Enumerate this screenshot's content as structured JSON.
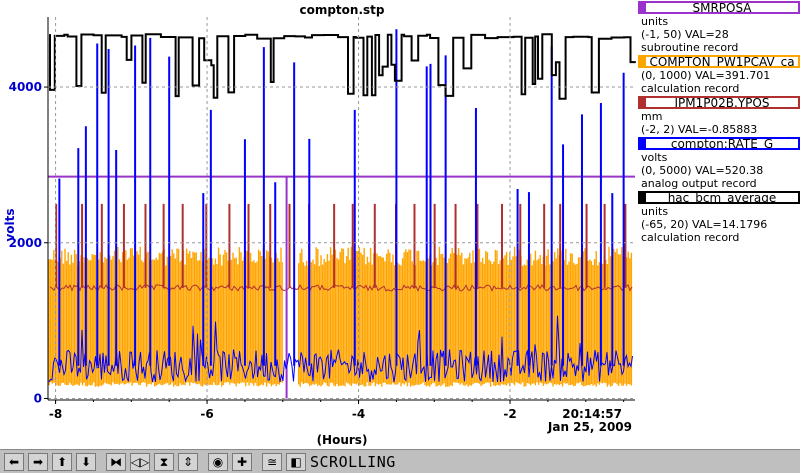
{
  "chart_data": {
    "type": "line",
    "title": "compton.stp",
    "ylabel": "volts",
    "xlabel": "(Hours)",
    "xlim": [
      -8.1,
      -0.35
    ],
    "ylim": [
      -20,
      4900
    ],
    "x_ticks": [
      -8,
      -6,
      -4,
      -2
    ],
    "x_tick_labels": [
      "-8",
      "-6",
      "-4",
      "-2"
    ],
    "y_ticks": [
      0,
      2000,
      4000
    ],
    "y_tick_labels": [
      "0",
      "2000",
      "4000"
    ],
    "grid": true,
    "timestamp": "20:14:57",
    "date": "Jan 25, 2009",
    "legend_position": "right",
    "series": [
      {
        "name": "SMRPOSA",
        "color": "#9933cc",
        "units": "units",
        "range": "(-1, 50)",
        "val": "VAL=28",
        "record": "subroutine record",
        "description": "flat line around 2850 on the volts axis",
        "level": 2850
      },
      {
        "name": "COMPTON_PW1PCAV_ca",
        "color": "#ffa500",
        "units": "(0, 1000) VAL=391.701",
        "range": "",
        "val": "",
        "record": "calculation record",
        "band_low": 150,
        "band_high": 1950
      },
      {
        "name": "IPM1P02B.YPOS",
        "color": "#b03030",
        "units": "mm",
        "range": "(-2, 2) VAL=-0.85883",
        "val": "",
        "record": "",
        "baseline": 1420,
        "spike_top": 2500
      },
      {
        "name": "compton:RATE_G",
        "color": "#0000ff",
        "units": "volts",
        "range": "(0, 5000) VAL=520.38",
        "val": "",
        "record": "analog output record",
        "baseline": 420,
        "spike_x": [
          -7.95,
          -7.7,
          -7.6,
          -7.45,
          -7.3,
          -7.2,
          -6.95,
          -6.75,
          -6.5,
          -6.05,
          -5.95,
          -5.5,
          -5.25,
          -5.1,
          -4.85,
          -4.65,
          -4.05,
          -3.5,
          -3.1,
          -3.05,
          -2.85,
          -2.45,
          -1.9,
          -1.75,
          -1.45,
          -1.3,
          -1.05,
          -0.8,
          -0.65,
          -0.5
        ]
      },
      {
        "name": "hac_bcm_average",
        "color": "#000000",
        "units": "units",
        "range": "(-65, 20) VAL=14.1796",
        "val": "",
        "record": "calculation record",
        "high": 4680,
        "low": 3850
      }
    ]
  },
  "legend": [
    {
      "label": "SMRPOSA",
      "lines": [
        "units",
        "(-1, 50) VAL=28",
        "subroutine record"
      ],
      "color": "#9933cc"
    },
    {
      "label": "COMPTON_PW1PCAV_ca",
      "lines": [
        "(0, 1000) VAL=391.701",
        "calculation record"
      ],
      "color": "#ffa500"
    },
    {
      "label": "IPM1P02B.YPOS",
      "lines": [
        "mm",
        "(-2, 2) VAL=-0.85883"
      ],
      "color": "#b03030"
    },
    {
      "label": "compton:RATE_G",
      "lines": [
        "volts",
        "(0, 5000) VAL=520.38",
        "analog output record"
      ],
      "color": "#0000ff"
    },
    {
      "label": "hac_bcm_average",
      "lines": [
        "units",
        "(-65, 20) VAL=14.1796",
        "calculation record"
      ],
      "color": "#000000"
    }
  ],
  "toolbar": {
    "buttons": [
      {
        "name": "scroll-left-button",
        "icon": "arrow-left-icon",
        "glyph": "⬅"
      },
      {
        "name": "scroll-right-button",
        "icon": "arrow-right-icon",
        "glyph": "➡"
      },
      {
        "name": "scroll-up-button",
        "icon": "arrow-up-icon",
        "glyph": "⬆"
      },
      {
        "name": "scroll-down-button",
        "icon": "arrow-down-icon",
        "glyph": "⬇"
      },
      {
        "name": "zoom-in-x-button",
        "icon": "zoom-in-x-icon",
        "glyph": "⧓"
      },
      {
        "name": "zoom-out-x-button",
        "icon": "zoom-out-x-icon",
        "glyph": "◁▷"
      },
      {
        "name": "zoom-in-y-button",
        "icon": "zoom-in-y-icon",
        "glyph": "⧗"
      },
      {
        "name": "zoom-out-y-button",
        "icon": "zoom-out-y-icon",
        "glyph": "⇕"
      },
      {
        "name": "auto-scale-button",
        "icon": "auto-scale-icon",
        "glyph": "◉"
      },
      {
        "name": "add-button",
        "icon": "plus-icon",
        "glyph": "✚"
      },
      {
        "name": "stagger-button",
        "icon": "stagger-icon",
        "glyph": "≅"
      },
      {
        "name": "back-button",
        "icon": "back-icon",
        "glyph": "◧"
      }
    ],
    "mode_label": "SCROLLING"
  }
}
